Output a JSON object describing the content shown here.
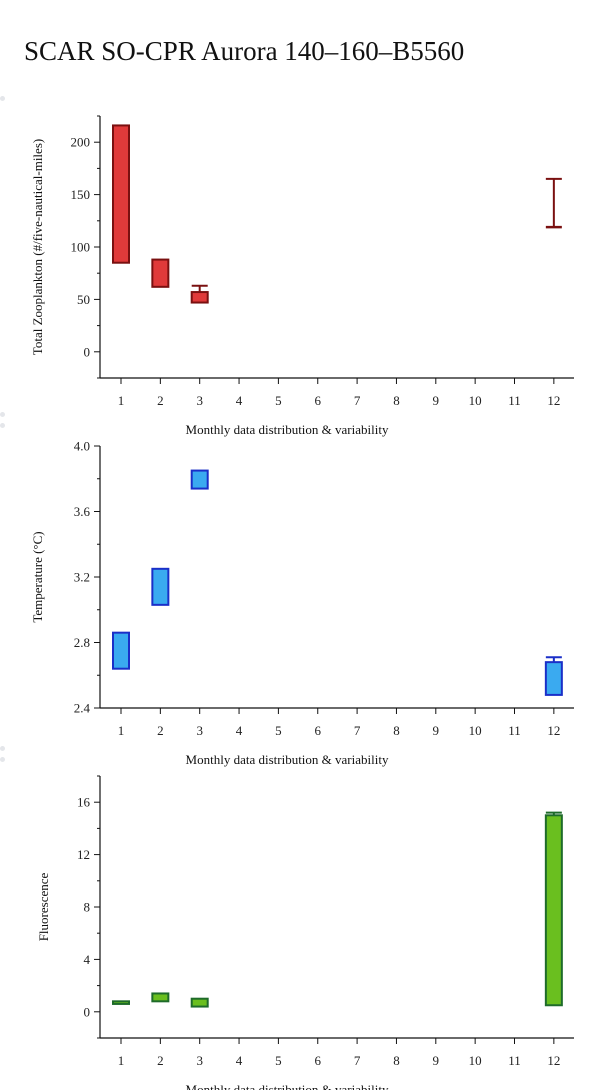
{
  "title": "SCAR SO-CPR Aurora 140–160–B5560",
  "chart_data": [
    {
      "type": "box",
      "ylabel": "Total Zooplankton (#/five-nautical-miles)",
      "xlabel": "Monthly data distribution & variability",
      "categories": [
        1,
        2,
        3,
        4,
        5,
        6,
        7,
        8,
        9,
        10,
        11,
        12
      ],
      "ylim": [
        -25,
        225
      ],
      "yticks": [
        0,
        50,
        100,
        150,
        200
      ],
      "tick_decimals": 0,
      "fill": "#e03a3a",
      "stroke": "#7a1010",
      "boxes": [
        {
          "month": 1,
          "whisker_low": 85,
          "q1": 85,
          "q3": 216,
          "whisker_high": 216
        },
        {
          "month": 2,
          "whisker_low": 62,
          "q1": 62,
          "q3": 88,
          "whisker_high": 88
        },
        {
          "month": 3,
          "whisker_low": 47,
          "q1": 47,
          "q3": 57,
          "whisker_high": 63
        },
        {
          "month": 12,
          "whisker_low": 119,
          "q1": 119,
          "q3": 119,
          "whisker_high": 165
        }
      ]
    },
    {
      "type": "box",
      "ylabel": "Temperature (°C)",
      "xlabel": "Monthly data distribution & variability",
      "categories": [
        1,
        2,
        3,
        4,
        5,
        6,
        7,
        8,
        9,
        10,
        11,
        12
      ],
      "ylim": [
        2.4,
        4.0
      ],
      "yticks": [
        2.4,
        2.8,
        3.2,
        3.6,
        4.0
      ],
      "tick_decimals": 1,
      "fill": "#3aaaf0",
      "stroke": "#1a2fc8",
      "boxes": [
        {
          "month": 1,
          "whisker_low": 2.64,
          "q1": 2.64,
          "q3": 2.86,
          "whisker_high": 2.86
        },
        {
          "month": 2,
          "whisker_low": 3.03,
          "q1": 3.03,
          "q3": 3.25,
          "whisker_high": 3.25
        },
        {
          "month": 3,
          "whisker_low": 3.74,
          "q1": 3.74,
          "q3": 3.85,
          "whisker_high": 3.85
        },
        {
          "month": 12,
          "whisker_low": 2.48,
          "q1": 2.48,
          "q3": 2.68,
          "whisker_high": 2.71
        }
      ]
    },
    {
      "type": "box",
      "ylabel": "Fluorescence",
      "xlabel": "Monthly data distribution & variability",
      "categories": [
        1,
        2,
        3,
        4,
        5,
        6,
        7,
        8,
        9,
        10,
        11,
        12
      ],
      "ylim": [
        -2,
        18
      ],
      "yticks": [
        0,
        4,
        8,
        12,
        16
      ],
      "tick_decimals": 0,
      "fill": "#6abf1f",
      "stroke": "#1e6b2a",
      "boxes": [
        {
          "month": 1,
          "whisker_low": 0.6,
          "q1": 0.6,
          "q3": 0.8,
          "whisker_high": 0.8
        },
        {
          "month": 2,
          "whisker_low": 0.8,
          "q1": 0.8,
          "q3": 1.4,
          "whisker_high": 1.4
        },
        {
          "month": 3,
          "whisker_low": 0.4,
          "q1": 0.4,
          "q3": 1.0,
          "whisker_high": 1.0
        },
        {
          "month": 12,
          "whisker_low": 0.5,
          "q1": 0.5,
          "q3": 15.0,
          "whisker_high": 15.2
        }
      ]
    }
  ]
}
